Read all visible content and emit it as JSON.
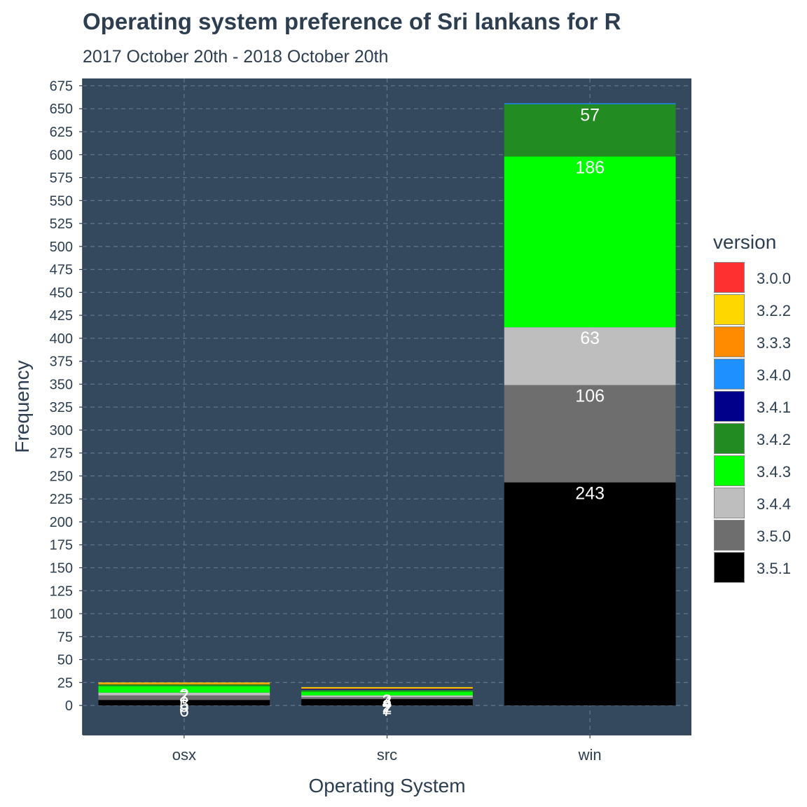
{
  "chart_data": {
    "type": "bar",
    "stacked": true,
    "title": "Operating system preference of Sri lankans for R",
    "subtitle": "2017 October 20th - 2018 October 20th",
    "xlabel": "Operating System",
    "ylabel": "Frequency",
    "categories": [
      "osx",
      "src",
      "win"
    ],
    "ylim": [
      -32,
      683
    ],
    "yticks": [
      0,
      25,
      50,
      75,
      100,
      125,
      150,
      175,
      200,
      225,
      250,
      275,
      300,
      325,
      350,
      375,
      400,
      425,
      450,
      475,
      500,
      525,
      550,
      575,
      600,
      625,
      650,
      675
    ],
    "legend": {
      "title": "version",
      "position": "right"
    },
    "series": [
      {
        "name": "3.0.0",
        "color": "#ff3030",
        "values": [
          0,
          0,
          0
        ]
      },
      {
        "name": "3.2.2",
        "color": "#ffd700",
        "values": [
          1,
          1,
          0
        ]
      },
      {
        "name": "3.3.3",
        "color": "#ff8c00",
        "values": [
          1,
          1,
          0
        ]
      },
      {
        "name": "3.4.0",
        "color": "#1e90ff",
        "values": [
          0,
          0,
          1
        ]
      },
      {
        "name": "3.4.1",
        "color": "#00008b",
        "values": [
          0,
          1,
          0
        ]
      },
      {
        "name": "3.4.2",
        "color": "#228b22",
        "values": [
          2,
          2,
          57
        ]
      },
      {
        "name": "3.4.3",
        "color": "#00ff00",
        "values": [
          7,
          4,
          186
        ]
      },
      {
        "name": "3.4.4",
        "color": "#bebebe",
        "values": [
          3,
          2,
          63
        ]
      },
      {
        "name": "3.5.0",
        "color": "#6e6e6e",
        "values": [
          5,
          2,
          106
        ]
      },
      {
        "name": "3.5.1",
        "color": "#000000",
        "values": [
          6,
          7,
          243
        ]
      }
    ],
    "data_labels_shown_for": [
      "3.4.2",
      "3.4.3",
      "3.4.4",
      "3.5.0",
      "3.5.1"
    ],
    "grid": true,
    "panel_color": "#34495e",
    "text_color": "#2c3e50"
  }
}
